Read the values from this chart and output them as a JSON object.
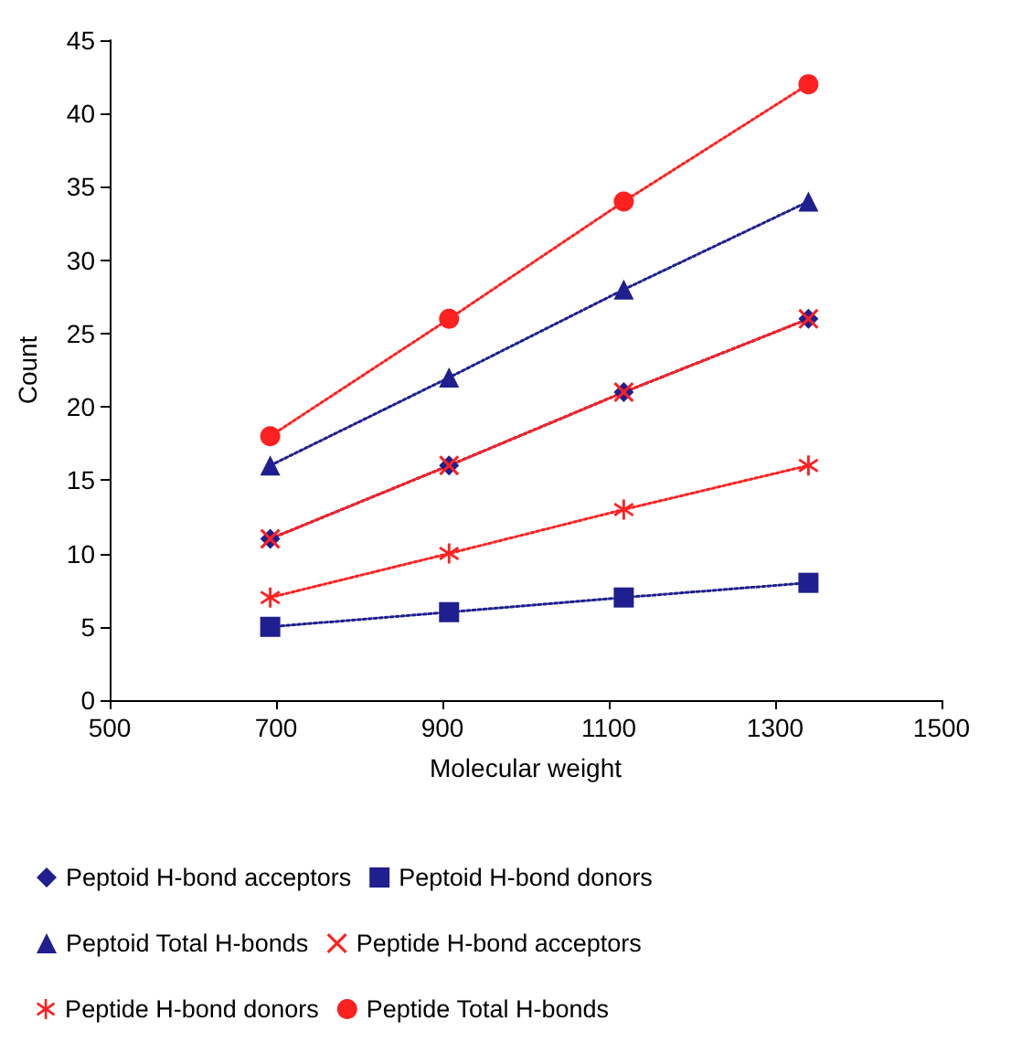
{
  "chart_data": {
    "type": "line",
    "xlabel": "Molecular weight",
    "ylabel": "Count",
    "x": [
      693,
      908,
      1118,
      1340
    ],
    "series": [
      {
        "name": "Peptoid H-bond acceptors",
        "color": "#1f1f8f",
        "marker": "diamond",
        "values": [
          11,
          16,
          21,
          26
        ]
      },
      {
        "name": "Peptoid H-bond donors",
        "color": "#1f1f8f",
        "marker": "square",
        "values": [
          5,
          6,
          7,
          8
        ]
      },
      {
        "name": "Peptoid Total H-bonds",
        "color": "#1f1f8f",
        "marker": "triangle",
        "values": [
          16,
          22,
          28,
          34
        ]
      },
      {
        "name": "Peptide H-bond acceptors",
        "color": "#ff2020",
        "marker": "cross",
        "values": [
          11,
          16,
          21,
          26
        ]
      },
      {
        "name": "Peptide H-bond donors",
        "color": "#ff2020",
        "marker": "star",
        "values": [
          7,
          10,
          13,
          16
        ]
      },
      {
        "name": "Peptide Total H-bonds",
        "color": "#ff2020",
        "marker": "circle",
        "values": [
          18,
          26,
          34,
          42
        ]
      }
    ],
    "xlim": [
      500,
      1500
    ],
    "xticks": [
      500,
      700,
      900,
      1100,
      1300,
      1500
    ],
    "ylim": [
      0,
      45
    ],
    "yticks": [
      0,
      5,
      10,
      15,
      20,
      25,
      30,
      35,
      40,
      45
    ],
    "grid": false,
    "legend": "bottom",
    "line_style": "dotted"
  }
}
